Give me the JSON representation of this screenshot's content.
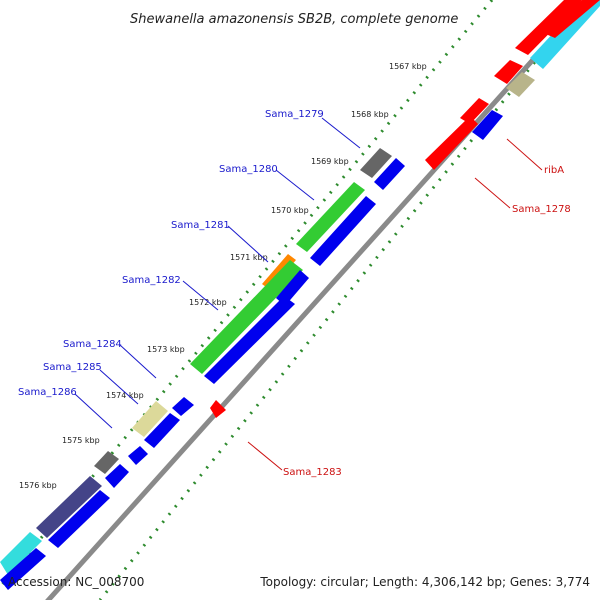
{
  "title": "Shewanella amazonensis SB2B, complete genome",
  "accession": "Accession: NC_008700",
  "summary": "Topology: circular; Length: 4,306,142 bp; Genes: 3,774",
  "ticks": [
    "1567 kbp",
    "1568 kbp",
    "1569 kbp",
    "1570 kbp",
    "1571 kbp",
    "1572 kbp",
    "1573 kbp",
    "1574 kbp",
    "1575 kbp",
    "1576 kbp"
  ],
  "colors": {
    "backbone": "#8a8a8a",
    "forward_cds": "#ff0000",
    "reverse_cds": "#0000ee",
    "green_feature": "#33cc33",
    "orange_feature": "#ff8800",
    "gray_feature": "#666666",
    "khaki_feature": "#dcd99a",
    "purple_feature": "#444488",
    "cyan_feature": "#33dddd",
    "ruler_dots": "#2e8b2e"
  },
  "labels": [
    {
      "id": "sama-1279",
      "text": "Sama_1279",
      "color": "blue"
    },
    {
      "id": "sama-1280",
      "text": "Sama_1280",
      "color": "blue"
    },
    {
      "id": "sama-1281",
      "text": "Sama_1281",
      "color": "blue"
    },
    {
      "id": "sama-1282",
      "text": "Sama_1282",
      "color": "blue"
    },
    {
      "id": "sama-1284",
      "text": "Sama_1284",
      "color": "blue"
    },
    {
      "id": "sama-1285",
      "text": "Sama_1285",
      "color": "blue"
    },
    {
      "id": "sama-1286",
      "text": "Sama_1286",
      "color": "blue"
    },
    {
      "id": "riba",
      "text": "ribA",
      "color": "red"
    },
    {
      "id": "sama-1278",
      "text": "Sama_1278",
      "color": "red"
    },
    {
      "id": "sama-1283",
      "text": "Sama_1283",
      "color": "red"
    }
  ]
}
